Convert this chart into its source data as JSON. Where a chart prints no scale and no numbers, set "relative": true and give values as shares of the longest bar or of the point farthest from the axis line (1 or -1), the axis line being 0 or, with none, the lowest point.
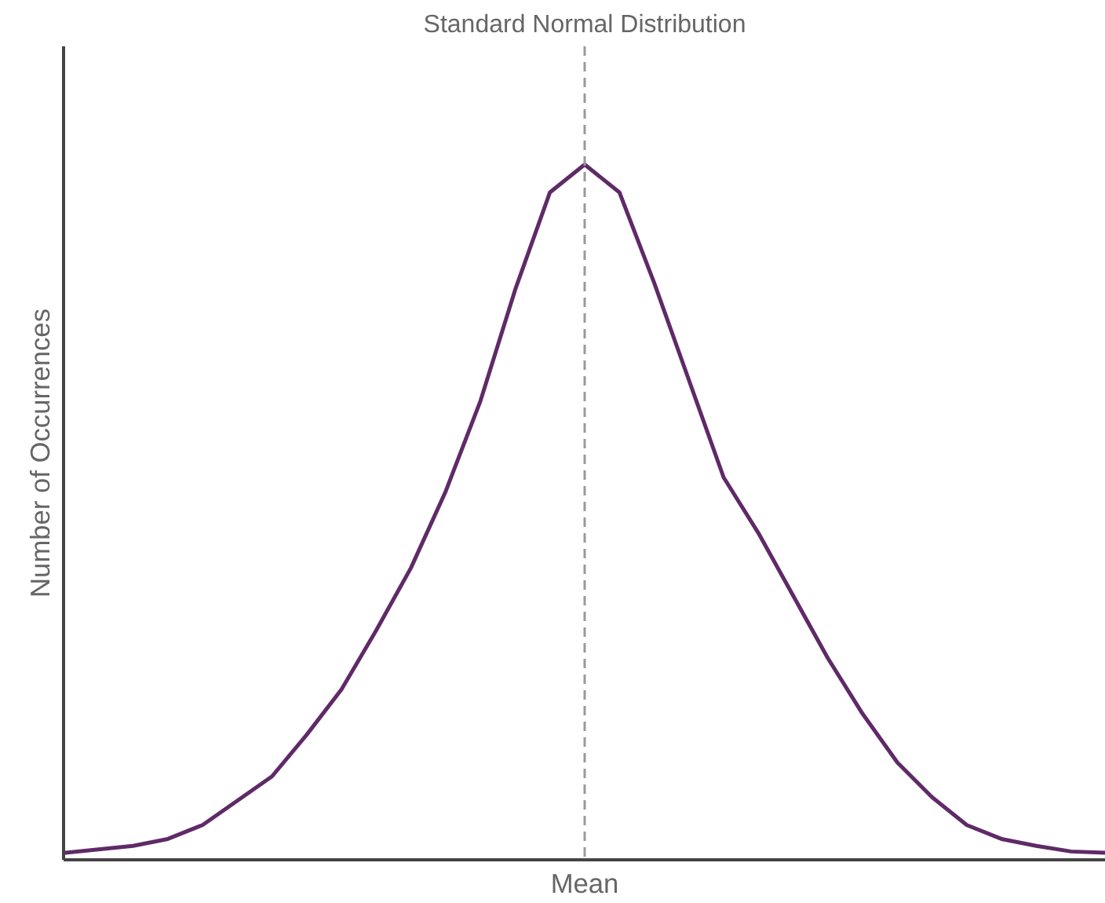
{
  "chart_data": {
    "type": "line",
    "title": "Standard Normal Distribution",
    "ylabel": "Number of Occurrences",
    "relative": true,
    "categories": [
      null,
      null,
      null,
      null,
      null,
      null,
      null,
      null,
      null,
      null,
      null,
      null,
      null,
      null,
      null,
      null,
      null,
      null,
      null,
      null,
      null,
      null,
      null,
      null,
      null,
      null,
      null,
      null,
      null,
      null,
      null
    ],
    "series": [
      {
        "color": "#5f2a67",
        "values": [
          0.01,
          0.015,
          0.02,
          0.03,
          0.05,
          0.085,
          0.12,
          0.18,
          0.245,
          0.33,
          0.42,
          0.53,
          0.66,
          0.82,
          0.96,
          1.0,
          0.96,
          0.83,
          0.69,
          0.55,
          0.47,
          0.38,
          0.29,
          0.21,
          0.14,
          0.09,
          0.05,
          0.03,
          0.02,
          0.012,
          0.01
        ]
      }
    ],
    "xlabel": "Mean",
    "marker": "none",
    "line_style": "solid"
  }
}
